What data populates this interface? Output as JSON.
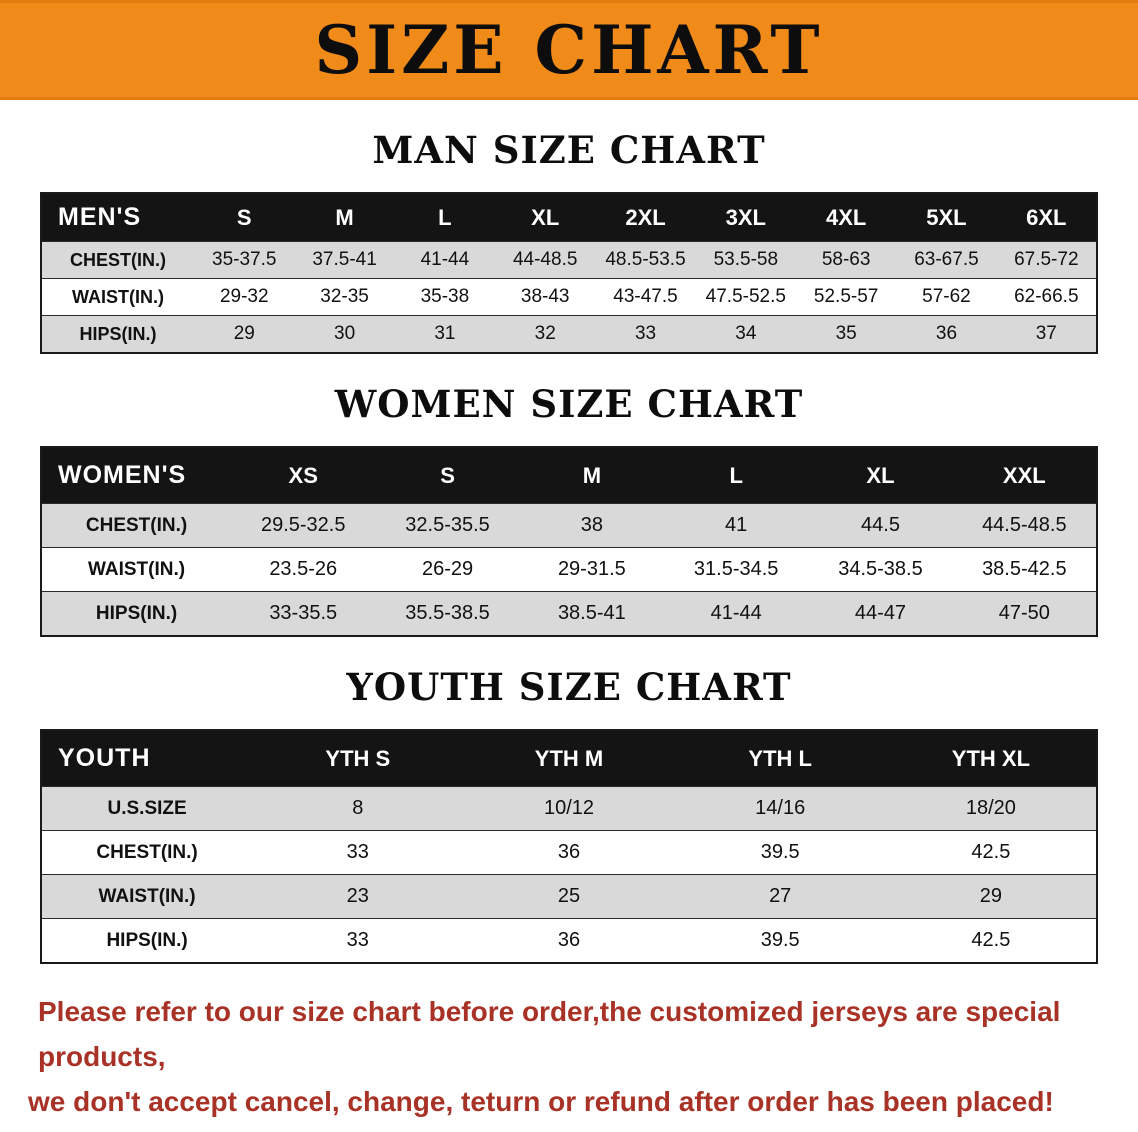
{
  "banner": {
    "title": "SIZE CHART",
    "bg_color": "#f08a18"
  },
  "sections": [
    {
      "heading": "MAN SIZE CHART",
      "table": {
        "title": "MEN'S",
        "columns": [
          "S",
          "M",
          "L",
          "XL",
          "2XL",
          "3XL",
          "4XL",
          "5XL",
          "6XL"
        ],
        "rows": [
          {
            "label": "CHEST(IN.)",
            "values": [
              "35-37.5",
              "37.5-41",
              "41-44",
              "44-48.5",
              "48.5-53.5",
              "53.5-58",
              "58-63",
              "63-67.5",
              "67.5-72"
            ]
          },
          {
            "label": "WAIST(IN.)",
            "values": [
              "29-32",
              "32-35",
              "35-38",
              "38-43",
              "43-47.5",
              "47.5-52.5",
              "52.5-57",
              "57-62",
              "62-66.5"
            ]
          },
          {
            "label": "HIPS(IN.)",
            "values": [
              "29",
              "30",
              "31",
              "32",
              "33",
              "34",
              "35",
              "36",
              "37"
            ]
          }
        ]
      }
    },
    {
      "heading": "WOMEN SIZE CHART",
      "table": {
        "title": "WOMEN'S",
        "columns": [
          "XS",
          "S",
          "M",
          "L",
          "XL",
          "XXL"
        ],
        "rows": [
          {
            "label": "CHEST(IN.)",
            "values": [
              "29.5-32.5",
              "32.5-35.5",
              "38",
              "41",
              "44.5",
              "44.5-48.5"
            ]
          },
          {
            "label": "WAIST(IN.)",
            "values": [
              "23.5-26",
              "26-29",
              "29-31.5",
              "31.5-34.5",
              "34.5-38.5",
              "38.5-42.5"
            ]
          },
          {
            "label": "HIPS(IN.)",
            "values": [
              "33-35.5",
              "35.5-38.5",
              "38.5-41",
              "41-44",
              "44-47",
              "47-50"
            ]
          }
        ]
      }
    },
    {
      "heading": "YOUTH SIZE CHART",
      "table": {
        "title": "YOUTH",
        "columns": [
          "YTH S",
          "YTH M",
          "YTH L",
          "YTH XL"
        ],
        "rows": [
          {
            "label": "U.S.SIZE",
            "values": [
              "8",
              "10/12",
              "14/16",
              "18/20"
            ]
          },
          {
            "label": "CHEST(IN.)",
            "values": [
              "33",
              "36",
              "39.5",
              "42.5"
            ]
          },
          {
            "label": "WAIST(IN.)",
            "values": [
              "23",
              "25",
              "27",
              "29"
            ]
          },
          {
            "label": "HIPS(IN.)",
            "values": [
              "33",
              "36",
              "39.5",
              "42.5"
            ]
          }
        ]
      }
    }
  ],
  "disclaimer": {
    "line1": "Please refer to our size chart before order,the customized jerseys are special products,",
    "line2": "we don't accept cancel, change, teturn or refund after order has been placed!",
    "color": "#a93226"
  }
}
